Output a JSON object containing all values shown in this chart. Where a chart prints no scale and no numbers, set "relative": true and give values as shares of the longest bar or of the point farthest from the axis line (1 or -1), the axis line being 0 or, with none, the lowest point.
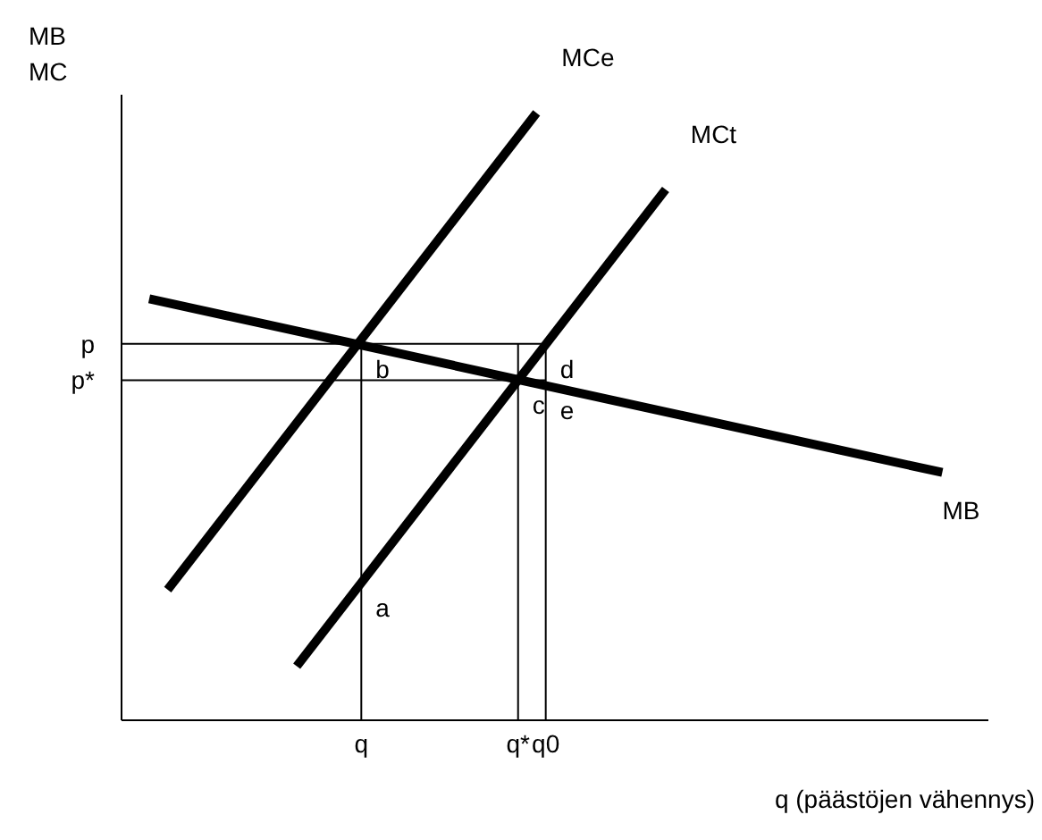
{
  "chart_data": {
    "type": "line",
    "relative": true,
    "ylabel": "MB\nMC",
    "xlabel": "q (päästöjen vähennys)",
    "categories": [
      null,
      null,
      null,
      null,
      null,
      null,
      null,
      null,
      null,
      null,
      null,
      null,
      null,
      null,
      null,
      null,
      null,
      null,
      null,
      null,
      null,
      null,
      null,
      null,
      null,
      null,
      "q",
      null,
      null,
      null,
      null,
      null,
      null,
      null,
      null,
      null,
      null,
      null,
      null,
      null,
      null,
      null,
      null,
      "q*",
      null,
      null,
      "q0",
      null,
      null,
      null,
      null,
      null,
      null,
      null,
      null,
      null,
      null,
      null,
      null,
      null,
      null,
      null,
      null,
      null,
      null,
      null,
      null,
      null,
      null,
      null,
      null,
      null,
      null,
      null,
      null,
      null,
      null,
      null,
      null,
      null,
      null,
      null,
      null,
      null,
      null,
      null,
      null,
      null,
      null,
      null,
      null,
      null,
      null,
      null,
      null
    ],
    "series": [
      {
        "name": "MCe",
        "color": "#000000",
        "values": [
          null,
          null,
          null,
          null,
          null,
          0.215,
          null,
          null,
          null,
          null,
          null,
          null,
          null,
          null,
          null,
          null,
          null,
          null,
          null,
          null,
          null,
          null,
          null,
          null,
          null,
          null,
          null,
          null,
          null,
          null,
          null,
          null,
          null,
          null,
          null,
          null,
          null,
          null,
          null,
          null,
          null,
          null,
          null,
          null,
          null,
          1,
          null,
          null,
          null,
          null,
          null,
          null,
          null,
          null,
          null,
          null,
          null,
          null,
          null,
          null,
          null,
          null,
          null,
          null,
          null,
          null,
          null,
          null,
          null,
          null,
          null,
          null,
          null,
          null,
          null,
          null,
          null,
          null,
          null,
          null,
          null,
          null,
          null,
          null,
          null,
          null,
          null,
          null,
          null,
          null,
          null,
          null,
          null,
          null,
          null
        ]
      },
      {
        "name": "MCt",
        "color": "#000000",
        "values": [
          null,
          null,
          null,
          null,
          null,
          null,
          null,
          null,
          null,
          null,
          null,
          null,
          null,
          null,
          null,
          null,
          null,
          null,
          null,
          0.089,
          null,
          null,
          null,
          null,
          null,
          null,
          null,
          null,
          null,
          null,
          null,
          null,
          null,
          null,
          null,
          null,
          null,
          null,
          null,
          null,
          null,
          null,
          null,
          null,
          null,
          null,
          null,
          null,
          null,
          null,
          null,
          null,
          null,
          null,
          null,
          null,
          null,
          null,
          null,
          0.874,
          null,
          null,
          null,
          null,
          null,
          null,
          null,
          null,
          null,
          null,
          null,
          null,
          null,
          null,
          null,
          null,
          null,
          null,
          null,
          null,
          null,
          null,
          null,
          null,
          null,
          null,
          null,
          null,
          null,
          null,
          null,
          null,
          null,
          null,
          null
        ]
      },
      {
        "name": "MB",
        "color": "#000000",
        "values": [
          null,
          null,
          null,
          0.694,
          null,
          null,
          null,
          null,
          null,
          null,
          null,
          null,
          null,
          null,
          null,
          null,
          null,
          null,
          null,
          null,
          null,
          null,
          null,
          null,
          null,
          null,
          null,
          null,
          null,
          null,
          null,
          null,
          null,
          null,
          null,
          null,
          null,
          null,
          null,
          null,
          null,
          null,
          null,
          null,
          null,
          null,
          null,
          null,
          null,
          null,
          null,
          null,
          null,
          null,
          null,
          null,
          null,
          null,
          null,
          null,
          null,
          null,
          null,
          null,
          null,
          null,
          null,
          null,
          null,
          null,
          null,
          null,
          null,
          null,
          null,
          null,
          null,
          null,
          null,
          null,
          null,
          null,
          null,
          null,
          null,
          null,
          null,
          null,
          null,
          0.408,
          null,
          null,
          null,
          null,
          null
        ]
      }
    ],
    "ref_lines": [
      {
        "axis": "y",
        "value": 0.62,
        "label": "p"
      },
      {
        "axis": "y",
        "value": 0.56,
        "label": "p*"
      },
      {
        "axis": "x",
        "value": "q"
      },
      {
        "axis": "x",
        "value": "q*"
      },
      {
        "axis": "x",
        "value": "q0"
      }
    ],
    "annotations": [
      {
        "text": "a",
        "x": "q",
        "y": 0.226
      },
      {
        "text": "b",
        "x": "q",
        "y": 0.62
      },
      {
        "text": "c",
        "x": "q*",
        "y": 0.56
      },
      {
        "text": "d",
        "x": "q0",
        "y": 0.62
      },
      {
        "text": "e",
        "x": "q0",
        "y": 0.551
      }
    ],
    "legend": false,
    "grid": false,
    "marker": "none",
    "line_style": "solid"
  }
}
